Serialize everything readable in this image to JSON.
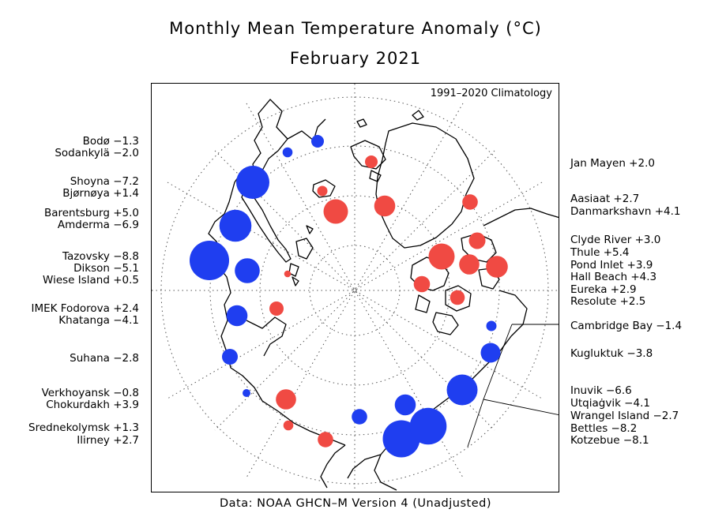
{
  "title": "Monthly Mean Temperature Anomaly (°C)",
  "subtitle": "February 2021",
  "climatology_note": "1991–2020 Climatology",
  "footer": "Data: NOAA GHCN–M Version 4 (Unadjusted)",
  "colors": {
    "positive": "#f04a43",
    "negative": "#1f3ef0"
  },
  "left_labels": [
    "Bodø −1.3",
    "Sodankylä −2.0",
    "Shoyna −7.2",
    "Bjørnøya +1.4",
    "Barentsburg +5.0",
    "Amderma −6.9",
    "Tazovsky −8.8",
    "Dikson −5.1",
    "Wiese Island +0.5",
    "IMEK Fodorova +2.4",
    "Khatanga −4.1",
    "Suhana −2.8",
    "Verkhoyansk −0.8",
    "Chokurdakh +3.9",
    "Srednekolymsk +1.3",
    "Ilirney +2.7"
  ],
  "right_labels": [
    "Jan Mayen +2.0",
    "Aasiaat +2.7",
    "Danmarkshavn +4.1",
    "Clyde River +3.0",
    "Thule +5.4",
    "Pond Inlet +3.9",
    "Hall Beach +4.3",
    "Eureka +2.9",
    "Resolute +2.5",
    "Cambridge Bay −1.4",
    "Kugluktuk −3.8",
    "Inuvik −6.6",
    "Utqiaġvik −4.1",
    "Wrangel Island −2.7",
    "Bettles −8.2",
    "Kotzebue −8.1"
  ],
  "stations": [
    {
      "name": "Bodø",
      "anomaly": -1.3
    },
    {
      "name": "Sodankylä",
      "anomaly": -2.0
    },
    {
      "name": "Shoyna",
      "anomaly": -7.2
    },
    {
      "name": "Bjørnøya",
      "anomaly": 1.4
    },
    {
      "name": "Barentsburg",
      "anomaly": 5.0
    },
    {
      "name": "Amderma",
      "anomaly": -6.9
    },
    {
      "name": "Tazovsky",
      "anomaly": -8.8
    },
    {
      "name": "Dikson",
      "anomaly": -5.1
    },
    {
      "name": "Wiese Island",
      "anomaly": 0.5
    },
    {
      "name": "IMEK Fodorova",
      "anomaly": 2.4
    },
    {
      "name": "Khatanga",
      "anomaly": -4.1
    },
    {
      "name": "Suhana",
      "anomaly": -2.8
    },
    {
      "name": "Verkhoyansk",
      "anomaly": -0.8
    },
    {
      "name": "Chokurdakh",
      "anomaly": 3.9
    },
    {
      "name": "Srednekolymsk",
      "anomaly": 1.3
    },
    {
      "name": "Ilirney",
      "anomaly": 2.7
    },
    {
      "name": "Jan Mayen",
      "anomaly": 2.0
    },
    {
      "name": "Aasiaat",
      "anomaly": 2.7
    },
    {
      "name": "Danmarkshavn",
      "anomaly": 4.1
    },
    {
      "name": "Clyde River",
      "anomaly": 3.0
    },
    {
      "name": "Thule",
      "anomaly": 5.4
    },
    {
      "name": "Pond Inlet",
      "anomaly": 3.9
    },
    {
      "name": "Hall Beach",
      "anomaly": 4.3
    },
    {
      "name": "Eureka",
      "anomaly": 2.9
    },
    {
      "name": "Resolute",
      "anomaly": 2.5
    },
    {
      "name": "Cambridge Bay",
      "anomaly": -1.4
    },
    {
      "name": "Kugluktuk",
      "anomaly": -3.8
    },
    {
      "name": "Inuvik",
      "anomaly": -6.6
    },
    {
      "name": "Utqiaġvik",
      "anomaly": -4.1
    },
    {
      "name": "Wrangel Island",
      "anomaly": -2.7
    },
    {
      "name": "Bettles",
      "anomaly": -8.2
    },
    {
      "name": "Kotzebue",
      "anomaly": -8.1
    }
  ]
}
